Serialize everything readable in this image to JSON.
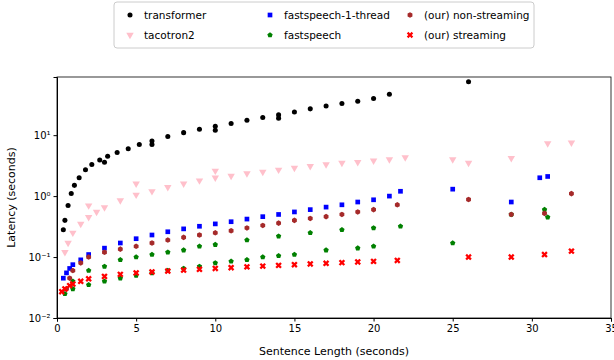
{
  "chart_data": {
    "type": "scatter",
    "xlabel": "Sentence Length (seconds)",
    "ylabel": "Latency (seconds)",
    "xlim": [
      0,
      35
    ],
    "ylim": [
      0.01,
      90
    ],
    "xticks": [
      0,
      5,
      10,
      15,
      20,
      25,
      30,
      35
    ],
    "yticks": [
      {
        "value": 0.01,
        "label": "10⁻²"
      },
      {
        "value": 0.1,
        "label": "10⁻¹"
      },
      {
        "value": 1,
        "label": "10⁰"
      },
      {
        "value": 10,
        "label": "10¹"
      }
    ],
    "log": "y",
    "legend": "top",
    "series": [
      {
        "name": "transformer",
        "color": "#000000",
        "marker": "circle",
        "x": [
          0.4,
          0.5,
          0.7,
          0.9,
          1.1,
          1.4,
          1.8,
          2.2,
          2.7,
          3.2,
          3.8,
          4.5,
          5.2,
          6,
          7,
          8,
          9,
          10,
          11,
          12,
          13,
          14,
          15,
          16,
          17,
          18,
          19,
          20,
          21,
          26,
          3,
          6,
          10,
          14
        ],
        "values": [
          0.28,
          0.4,
          0.7,
          1.1,
          1.5,
          2.0,
          2.7,
          3.3,
          3.9,
          4.5,
          5.2,
          6.0,
          7.0,
          8.0,
          9.5,
          11,
          12.5,
          14,
          15.5,
          17.5,
          19.5,
          21.5,
          24,
          27,
          30,
          33,
          36,
          40,
          47,
          75,
          3.6,
          7,
          12,
          19
        ]
      },
      {
        "name": "tacotron2",
        "color": "#ffc0cb",
        "marker": "triangle-down",
        "x": [
          0.5,
          0.7,
          1,
          1.5,
          2,
          2.5,
          3,
          4,
          5,
          6,
          7,
          8,
          9,
          10,
          11,
          12,
          13,
          14,
          15,
          16,
          17,
          18,
          19,
          20,
          21,
          22,
          25,
          26,
          28.7,
          31,
          32.5,
          2,
          5,
          10
        ],
        "values": [
          0.12,
          0.17,
          0.25,
          0.35,
          0.45,
          0.55,
          0.65,
          0.85,
          1.05,
          1.2,
          1.4,
          1.6,
          1.8,
          2.0,
          2.15,
          2.35,
          2.5,
          2.7,
          2.9,
          3.1,
          3.3,
          3.5,
          3.6,
          3.8,
          4.0,
          4.3,
          4.0,
          3.5,
          4.2,
          7.3,
          7.5,
          0.7,
          1.6,
          2.6
        ]
      },
      {
        "name": "fastspeech-1-thread",
        "color": "#0000ff",
        "marker": "square",
        "x": [
          0.4,
          0.6,
          0.8,
          1,
          1.5,
          2,
          3,
          4,
          5,
          6,
          7,
          8,
          9,
          10,
          11,
          12,
          13,
          14,
          15,
          16,
          17,
          18,
          19,
          20,
          21,
          21.7,
          25,
          28.7,
          30.5,
          31
        ],
        "values": [
          0.045,
          0.055,
          0.065,
          0.075,
          0.09,
          0.11,
          0.14,
          0.17,
          0.2,
          0.23,
          0.26,
          0.29,
          0.32,
          0.35,
          0.38,
          0.42,
          0.46,
          0.5,
          0.55,
          0.6,
          0.66,
          0.72,
          0.8,
          0.87,
          1.0,
          1.2,
          1.3,
          0.8,
          2.0,
          2.1
        ]
      },
      {
        "name": "fastspeech",
        "color": "#008000",
        "marker": "pentagon",
        "x": [
          0.5,
          1,
          2,
          3,
          4,
          5,
          6,
          7,
          8,
          9,
          10,
          11,
          12,
          13,
          14,
          15,
          17,
          19,
          20,
          1,
          2,
          3,
          4,
          5,
          6,
          7,
          8,
          9,
          10,
          12,
          14,
          16,
          18,
          20,
          21.7,
          25,
          28.7,
          30.8,
          31
        ],
        "values": [
          0.025,
          0.03,
          0.035,
          0.04,
          0.045,
          0.05,
          0.055,
          0.06,
          0.065,
          0.07,
          0.08,
          0.085,
          0.09,
          0.1,
          0.105,
          0.11,
          0.13,
          0.14,
          0.15,
          0.04,
          0.06,
          0.07,
          0.09,
          0.1,
          0.11,
          0.12,
          0.13,
          0.15,
          0.16,
          0.19,
          0.22,
          0.25,
          0.28,
          0.3,
          0.32,
          0.17,
          0.5,
          0.6,
          0.45
        ]
      },
      {
        "name": "(our) non-streaming",
        "color": "#a52a2a",
        "marker": "hexagon",
        "x": [
          0.6,
          0.8,
          1,
          1.5,
          2,
          3,
          4,
          5,
          6,
          7,
          8,
          9,
          10,
          11,
          12,
          13,
          14,
          15,
          16,
          17,
          18,
          19,
          20,
          21.5,
          26,
          28.7,
          30.8,
          32.5
        ],
        "values": [
          0.03,
          0.045,
          0.06,
          0.08,
          0.1,
          0.12,
          0.135,
          0.15,
          0.17,
          0.19,
          0.21,
          0.23,
          0.25,
          0.27,
          0.3,
          0.33,
          0.36,
          0.4,
          0.43,
          0.46,
          0.5,
          0.55,
          0.6,
          0.72,
          0.88,
          0.5,
          0.52,
          1.1
        ]
      },
      {
        "name": "(our) streaming",
        "color": "#ff0000",
        "marker": "x",
        "x": [
          0.3,
          0.5,
          0.8,
          1,
          1.5,
          2,
          3,
          4,
          5,
          6,
          7,
          8,
          9,
          10,
          11,
          12,
          13,
          14,
          15,
          16,
          17,
          18,
          19,
          20,
          21.5,
          26,
          28.7,
          30.8,
          32.5
        ],
        "values": [
          0.027,
          0.03,
          0.034,
          0.036,
          0.04,
          0.044,
          0.048,
          0.052,
          0.055,
          0.057,
          0.059,
          0.061,
          0.063,
          0.065,
          0.067,
          0.069,
          0.071,
          0.073,
          0.075,
          0.077,
          0.079,
          0.081,
          0.083,
          0.085,
          0.088,
          0.1,
          0.1,
          0.11,
          0.125
        ]
      }
    ]
  }
}
